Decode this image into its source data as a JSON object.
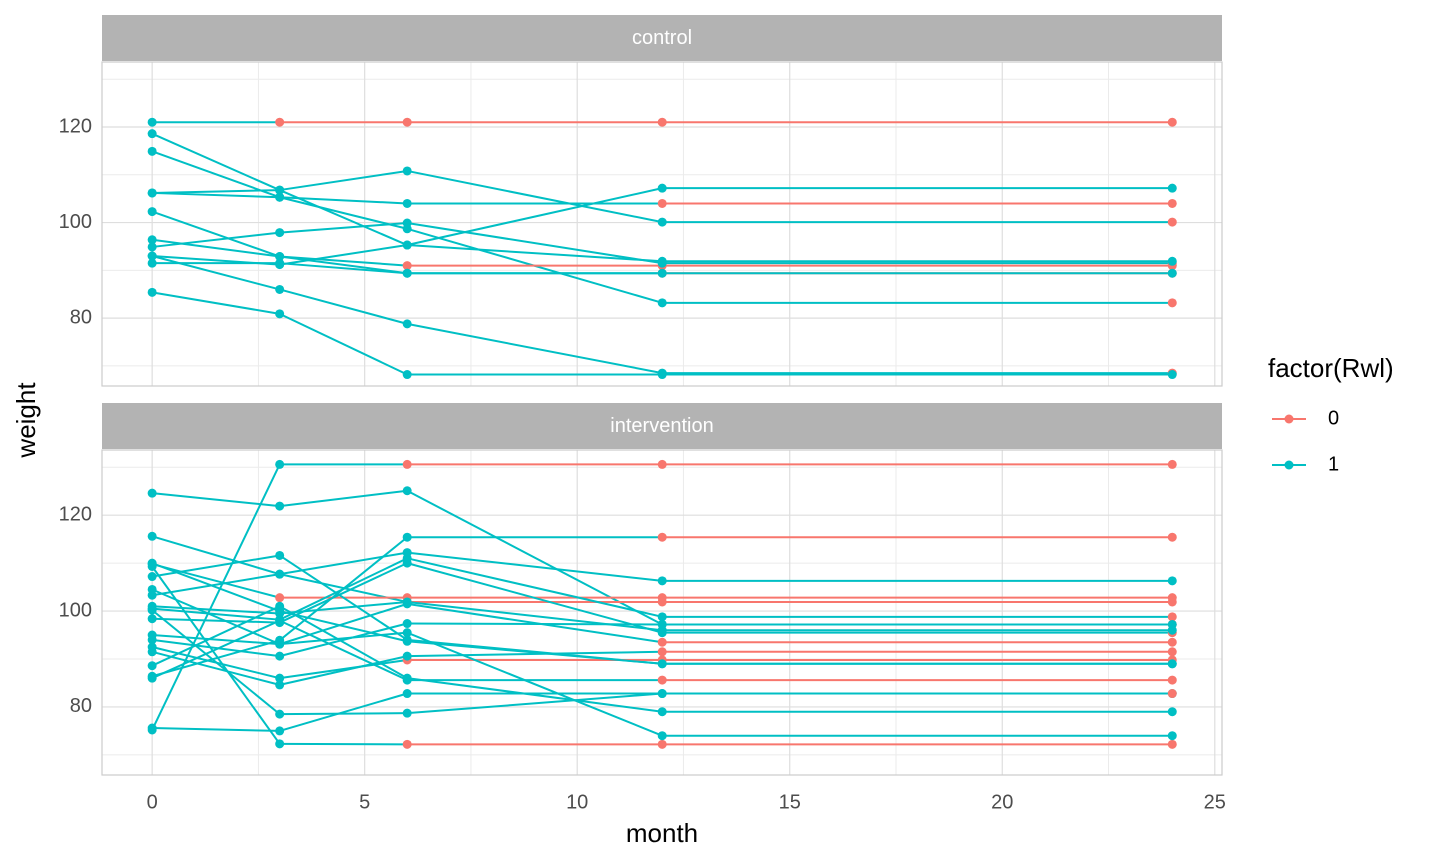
{
  "chart_data": {
    "type": "line",
    "x_label": "month",
    "y_label": "weight",
    "x": [
      0,
      3,
      6,
      12,
      24
    ],
    "xlim": [
      -1.18,
      25.17
    ],
    "xticks": [
      0,
      5,
      10,
      15,
      20,
      25
    ],
    "xminor": [
      2.5,
      7.5,
      12.5,
      17.5,
      22.5
    ],
    "ylim": [
      65.8,
      133.6
    ],
    "yticks": [
      80,
      100,
      120
    ],
    "yminor": [
      70,
      90,
      110,
      130
    ],
    "grid": true,
    "legend": {
      "title": "factor(Rwl)",
      "position": "right",
      "items": [
        {
          "label": "0",
          "color": "#F8766D"
        },
        {
          "label": "1",
          "color": "#00BFC4"
        }
      ]
    },
    "panels": [
      {
        "label": "control",
        "subjects": [
          {
            "values": [
              121,
              121,
              121,
              121,
              121
            ],
            "rwl": [
              1,
              0,
              0,
              0,
              0
            ]
          },
          {
            "values": [
              118.6,
              106.8,
              95.3,
              107.2,
              107.2
            ],
            "rwl": [
              1,
              1,
              1,
              1,
              1
            ]
          },
          {
            "values": [
              114.9,
              105.3,
              98.7,
              83.2,
              83.2
            ],
            "rwl": [
              1,
              1,
              1,
              1,
              0
            ]
          },
          {
            "values": [
              106.2,
              106.8,
              110.8,
              100.1,
              100.1
            ],
            "rwl": [
              1,
              1,
              1,
              1,
              0
            ]
          },
          {
            "values": [
              106.2,
              105.3,
              104,
              104,
              104
            ],
            "rwl": [
              1,
              1,
              1,
              0,
              0
            ]
          },
          {
            "values": [
              102.3,
              92.9,
              91,
              91,
              91
            ],
            "rwl": [
              1,
              1,
              0,
              0,
              0
            ]
          },
          {
            "values": [
              96.4,
              92.9,
              89.4,
              89.4,
              89.4
            ],
            "rwl": [
              1,
              1,
              1,
              0,
              0
            ]
          },
          {
            "values": [
              94.9,
              97.9,
              99.9,
              91.5,
              91.5
            ],
            "rwl": [
              1,
              1,
              1,
              1,
              0
            ]
          },
          {
            "values": [
              93,
              91.2,
              95.3,
              91.9,
              91.9
            ],
            "rwl": [
              1,
              1,
              1,
              1,
              1
            ]
          },
          {
            "values": [
              91.5,
              91.5,
              89.4,
              89.4,
              89.4
            ],
            "rwl": [
              1,
              1,
              1,
              1,
              1
            ]
          },
          {
            "values": [
              93,
              86,
              78.8,
              68.5,
              68.5
            ],
            "rwl": [
              1,
              1,
              1,
              1,
              0
            ]
          },
          {
            "values": [
              85.4,
              80.9,
              68.2,
              68.2,
              68.2
            ],
            "rwl": [
              1,
              1,
              1,
              1,
              1
            ]
          }
        ]
      },
      {
        "label": "intervention",
        "subjects": [
          {
            "values": [
              75.2,
              130.6,
              130.6,
              130.6,
              130.6
            ],
            "rwl": [
              1,
              1,
              0,
              0,
              0
            ]
          },
          {
            "values": [
              124.6,
              121.9,
              125.1,
              97.2,
              97.2
            ],
            "rwl": [
              1,
              1,
              1,
              1,
              0
            ]
          },
          {
            "values": [
              86.4,
              93.9,
              115.4,
              115.4,
              115.4
            ],
            "rwl": [
              1,
              1,
              1,
              0,
              0
            ]
          },
          {
            "values": [
              115.6,
              107.7,
              101.9,
              101.9,
              101.9
            ],
            "rwl": [
              1,
              1,
              0,
              0,
              0
            ]
          },
          {
            "values": [
              109.8,
              102.8,
              102.8,
              102.8,
              102.8
            ],
            "rwl": [
              1,
              0,
              0,
              0,
              0
            ]
          },
          {
            "values": [
              107.2,
              111.6,
              94,
              89,
              89
            ],
            "rwl": [
              1,
              1,
              1,
              1,
              1
            ]
          },
          {
            "values": [
              103.3,
              107.7,
              112.2,
              106.3,
              106.3
            ],
            "rwl": [
              1,
              1,
              1,
              1,
              1
            ]
          },
          {
            "values": [
              100.5,
              98.2,
              111,
              98.8,
              98.8
            ],
            "rwl": [
              1,
              1,
              1,
              1,
              0
            ]
          },
          {
            "values": [
              98.4,
              97.6,
              110,
              95.5,
              95.5
            ],
            "rwl": [
              1,
              1,
              1,
              1,
              0
            ]
          },
          {
            "values": [
              95,
              93.1,
              101.5,
              93.5,
              93.5
            ],
            "rwl": [
              1,
              1,
              1,
              0,
              0
            ]
          },
          {
            "values": [
              94,
              90.6,
              97.4,
              97.2,
              97.2
            ],
            "rwl": [
              1,
              1,
              1,
              1,
              1
            ]
          },
          {
            "values": [
              92.5,
              86,
              89.8,
              89.8,
              89.8
            ],
            "rwl": [
              1,
              1,
              0,
              0,
              0
            ]
          },
          {
            "values": [
              91.5,
              84.6,
              90.6,
              91.5,
              91.5
            ],
            "rwl": [
              1,
              1,
              1,
              0,
              0
            ]
          },
          {
            "values": [
              88.6,
              101,
              86,
              79,
              79
            ],
            "rwl": [
              1,
              1,
              1,
              1,
              1
            ]
          },
          {
            "values": [
              86,
              98,
              85.6,
              85.6,
              85.6
            ],
            "rwl": [
              1,
              1,
              1,
              0,
              0
            ]
          },
          {
            "values": [
              75.6,
              75,
              82.8,
              82.8,
              82.8
            ],
            "rwl": [
              1,
              1,
              1,
              1,
              1
            ]
          },
          {
            "values": [
              100.2,
              78.5,
              78.7,
              82.8,
              82.8
            ],
            "rwl": [
              1,
              1,
              1,
              1,
              0
            ]
          },
          {
            "values": [
              109.3,
              72.3,
              72.2,
              72.2,
              72.2
            ],
            "rwl": [
              1,
              1,
              0,
              0,
              0
            ]
          },
          {
            "values": [
              104.5,
              93.1,
              95.5,
              74,
              74
            ],
            "rwl": [
              1,
              1,
              1,
              1,
              1
            ]
          },
          {
            "values": [
              101,
              99.5,
              101.9,
              96,
              96
            ],
            "rwl": [
              1,
              1,
              1,
              1,
              1
            ]
          },
          {
            "values": [
              110,
              100,
              93.7,
              89,
              89
            ],
            "rwl": [
              1,
              1,
              1,
              1,
              1
            ]
          }
        ]
      }
    ]
  }
}
